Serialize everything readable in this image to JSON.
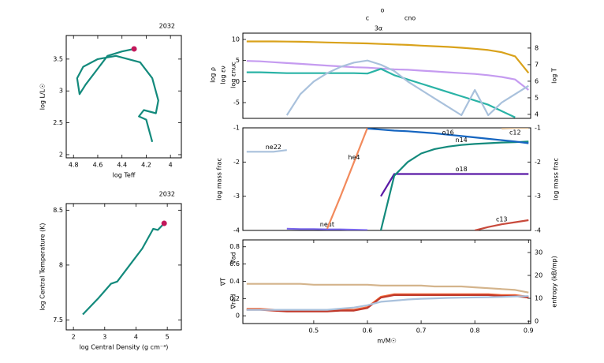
{
  "chart_data": [
    {
      "type": "line",
      "title": "2032",
      "xlabel": "log Teff",
      "ylabel": "log L/L☉",
      "xlim": [
        4.86,
        3.91
      ],
      "xticks": [
        4.8,
        4.6,
        4.4,
        4.2,
        4
      ],
      "ylim": [
        1.95,
        3.87
      ],
      "yticks": [
        2,
        2.5,
        3,
        3.5
      ],
      "color": "#138a7c",
      "marker_color": "#c2185b",
      "x": [
        4.15,
        4.2,
        4.26,
        4.22,
        4.12,
        4.1,
        4.15,
        4.25,
        4.45,
        4.6,
        4.72,
        4.77,
        4.75,
        4.7,
        4.6,
        4.52,
        4.4,
        4.3
      ],
      "values": [
        2.2,
        2.55,
        2.6,
        2.7,
        2.65,
        2.85,
        3.2,
        3.45,
        3.55,
        3.5,
        3.38,
        3.2,
        2.95,
        3.1,
        3.35,
        3.55,
        3.62,
        3.66
      ]
    },
    {
      "type": "line",
      "title": "2032",
      "xlabel": "log Central Density (g cm⁻³)",
      "ylabel": "log Central Temperature (K)",
      "xlim": [
        1.77,
        5.45
      ],
      "xticks": [
        2,
        3,
        4,
        5
      ],
      "ylim": [
        7.41,
        8.56
      ],
      "yticks": [
        7.5,
        8,
        8.5
      ],
      "color": "#138a7c",
      "marker_color": "#c2185b",
      "x": [
        2.3,
        2.8,
        3.2,
        3.4,
        3.8,
        4.2,
        4.55,
        4.7,
        4.9
      ],
      "values": [
        7.55,
        7.7,
        7.83,
        7.85,
        8.0,
        8.15,
        8.33,
        8.32,
        8.38
      ]
    },
    {
      "type": "line",
      "annotations": [
        "o",
        "c",
        "cno",
        "3α"
      ],
      "xlim": [
        0.368,
        0.904
      ],
      "ylim": [
        -8.75,
        11.5
      ],
      "yticks": [
        -5,
        0,
        5,
        10
      ],
      "y2lim": [
        3.76,
        8.9
      ],
      "y2ticks": [
        4,
        5,
        6,
        7,
        8
      ],
      "x": [
        0.375,
        0.4,
        0.425,
        0.45,
        0.475,
        0.5,
        0.525,
        0.55,
        0.575,
        0.6,
        0.625,
        0.65,
        0.675,
        0.7,
        0.725,
        0.75,
        0.775,
        0.8,
        0.825,
        0.85,
        0.875,
        0.9
      ],
      "series": [
        {
          "name": "log ρ",
          "color": "#c59bf0",
          "values": [
            4.9,
            4.8,
            4.6,
            4.4,
            4.2,
            4.0,
            3.8,
            3.6,
            3.4,
            3.3,
            3.1,
            2.9,
            2.8,
            2.6,
            2.4,
            2.2,
            2.0,
            1.8,
            1.5,
            1.1,
            0.5,
            -2
          ]
        },
        {
          "name": "log εν",
          "color": "#2ab3a6",
          "values": [
            2.2,
            2.2,
            2.1,
            2.0,
            2.0,
            2.0,
            2.0,
            2.0,
            2.0,
            1.9,
            3.0,
            1.5,
            0.5,
            -0.5,
            -1.5,
            -2.5,
            -3.5,
            -4.5,
            -5.5,
            -7,
            -8.5,
            null
          ]
        },
        {
          "name": "log εnuc",
          "color": "#a9c1dc",
          "values": [
            null,
            null,
            null,
            -8,
            -3,
            0,
            2,
            3.5,
            4.5,
            5,
            4,
            2.5,
            0,
            -2,
            -4,
            -6,
            -8,
            -2,
            -8,
            -5,
            -3,
            -1
          ]
        },
        {
          "name": "log T",
          "color": "#d9a21b",
          "axis": "y2",
          "values": [
            8.4,
            8.4,
            8.4,
            8.39,
            8.38,
            8.36,
            8.34,
            8.32,
            8.3,
            8.28,
            8.25,
            8.22,
            8.19,
            8.15,
            8.11,
            8.07,
            8.02,
            7.96,
            7.88,
            7.75,
            7.5,
            6.5
          ]
        }
      ]
    },
    {
      "type": "line",
      "ylabel": "log mass frac",
      "y2label": "log mass frac",
      "xlim": [
        0.368,
        0.904
      ],
      "ylim": [
        -4,
        -1
      ],
      "yticks": [
        -4,
        -3,
        -2,
        -1
      ],
      "y2lim": [
        -4,
        -1
      ],
      "y2ticks": [
        -4,
        -3,
        -2,
        -1
      ],
      "x": [
        0.375,
        0.4,
        0.425,
        0.45,
        0.475,
        0.5,
        0.525,
        0.55,
        0.575,
        0.6,
        0.625,
        0.65,
        0.675,
        0.7,
        0.725,
        0.75,
        0.775,
        0.8,
        0.825,
        0.85,
        0.875,
        0.9
      ],
      "series": [
        {
          "name": "ne22",
          "color": "#a9c1dc",
          "values": [
            -1.7,
            -1.7,
            -1.7,
            -1.65,
            null,
            null,
            null,
            null,
            null,
            null,
            null,
            null,
            null,
            null,
            null,
            null,
            null,
            null,
            null,
            null,
            null,
            null
          ]
        },
        {
          "name": "neut",
          "color": "#7b68ee",
          "values": [
            null,
            null,
            null,
            -3.95,
            -3.96,
            -3.96,
            -3.97,
            -3.97,
            -3.98,
            -3.99,
            null,
            null,
            null,
            null,
            null,
            null,
            null,
            null,
            null,
            null,
            null,
            null
          ]
        },
        {
          "name": "he4",
          "color": "#f28a5c",
          "values": [
            null,
            null,
            null,
            null,
            null,
            null,
            -3.95,
            -3.0,
            -2.0,
            -1.0,
            null,
            null,
            null,
            null,
            null,
            null,
            null,
            null,
            null,
            null,
            null,
            null
          ]
        },
        {
          "name": "o18",
          "color": "#5a1aa6",
          "values": [
            null,
            null,
            null,
            null,
            null,
            null,
            null,
            null,
            null,
            null,
            -3.0,
            -2.35,
            -2.35,
            -2.35,
            -2.35,
            -2.35,
            -2.35,
            -2.35,
            -2.35,
            -2.35,
            -2.35,
            -2.35
          ]
        },
        {
          "name": "n14",
          "color": "#138a7c",
          "values": [
            null,
            null,
            null,
            null,
            null,
            null,
            null,
            null,
            null,
            null,
            -4,
            -2.4,
            -2.0,
            -1.75,
            -1.62,
            -1.55,
            -1.5,
            -1.47,
            -1.45,
            -1.43,
            -1.42,
            -1.4
          ]
        },
        {
          "name": "o16",
          "color": "#1565c0",
          "values": [
            null,
            null,
            null,
            null,
            null,
            null,
            null,
            null,
            null,
            -1.02,
            -1.05,
            -1.08,
            -1.1,
            -1.13,
            -1.16,
            -1.2,
            -1.24,
            -1.28,
            -1.32,
            -1.36,
            -1.4,
            -1.45
          ]
        },
        {
          "name": "c13",
          "color": "#c84a3c",
          "values": [
            null,
            null,
            null,
            null,
            null,
            null,
            null,
            null,
            null,
            null,
            null,
            null,
            null,
            null,
            null,
            null,
            null,
            -4,
            -3.9,
            -3.82,
            -3.76,
            -3.7
          ]
        },
        {
          "name": "c12",
          "color": "#d4b48c",
          "values": [
            null,
            null,
            null,
            null,
            null,
            null,
            null,
            null,
            null,
            null,
            null,
            null,
            null,
            null,
            null,
            null,
            null,
            null,
            null,
            -1.02,
            -1.0,
            -1.0
          ]
        }
      ]
    },
    {
      "type": "line",
      "xlabel": "m/M☉",
      "xlim": [
        0.368,
        0.904
      ],
      "xticks": [
        0.5,
        0.6,
        0.7,
        0.8,
        0.9
      ],
      "ylim": [
        -0.09,
        0.88
      ],
      "yticks": [
        0,
        0.2,
        0.4,
        0.6,
        0.8
      ],
      "y2lim": [
        -1,
        35.5
      ],
      "y2ticks": [
        0,
        10,
        20,
        30
      ],
      "x": [
        0.375,
        0.4,
        0.425,
        0.45,
        0.475,
        0.5,
        0.525,
        0.55,
        0.575,
        0.6,
        0.625,
        0.65,
        0.675,
        0.7,
        0.725,
        0.75,
        0.775,
        0.8,
        0.825,
        0.85,
        0.875,
        0.9
      ],
      "series": [
        {
          "name": "∇ad",
          "color": "#d4b48c",
          "values": [
            0.37,
            0.37,
            0.37,
            0.37,
            0.37,
            0.36,
            0.36,
            0.36,
            0.36,
            0.36,
            0.35,
            0.35,
            0.35,
            0.35,
            0.34,
            0.34,
            0.34,
            0.33,
            0.32,
            0.31,
            0.3,
            0.27
          ]
        },
        {
          "name": "∇rad",
          "color": "#f26b3a",
          "values": [
            0.08,
            0.08,
            0.07,
            0.06,
            0.06,
            0.06,
            0.06,
            0.07,
            0.07,
            0.1,
            0.22,
            0.25,
            0.25,
            0.25,
            0.25,
            0.25,
            0.25,
            0.25,
            0.25,
            0.24,
            0.24,
            0.22
          ]
        },
        {
          "name": "∇T",
          "color": "#c0392b",
          "values": [
            0.07,
            0.07,
            0.06,
            0.05,
            0.05,
            0.05,
            0.05,
            0.06,
            0.06,
            0.09,
            0.21,
            0.24,
            0.24,
            0.24,
            0.24,
            0.24,
            0.24,
            0.24,
            0.24,
            0.23,
            0.23,
            0.21
          ]
        },
        {
          "name": "entropy (kB/mp)",
          "color": "#a9c1dc",
          "axis": "y2",
          "values": [
            5,
            5,
            5,
            5,
            5,
            5,
            5,
            5.5,
            6,
            7,
            8.5,
            9,
            9.5,
            9.8,
            10,
            10.2,
            10.3,
            10.4,
            10.5,
            10.6,
            10.8,
            11
          ]
        }
      ]
    }
  ]
}
